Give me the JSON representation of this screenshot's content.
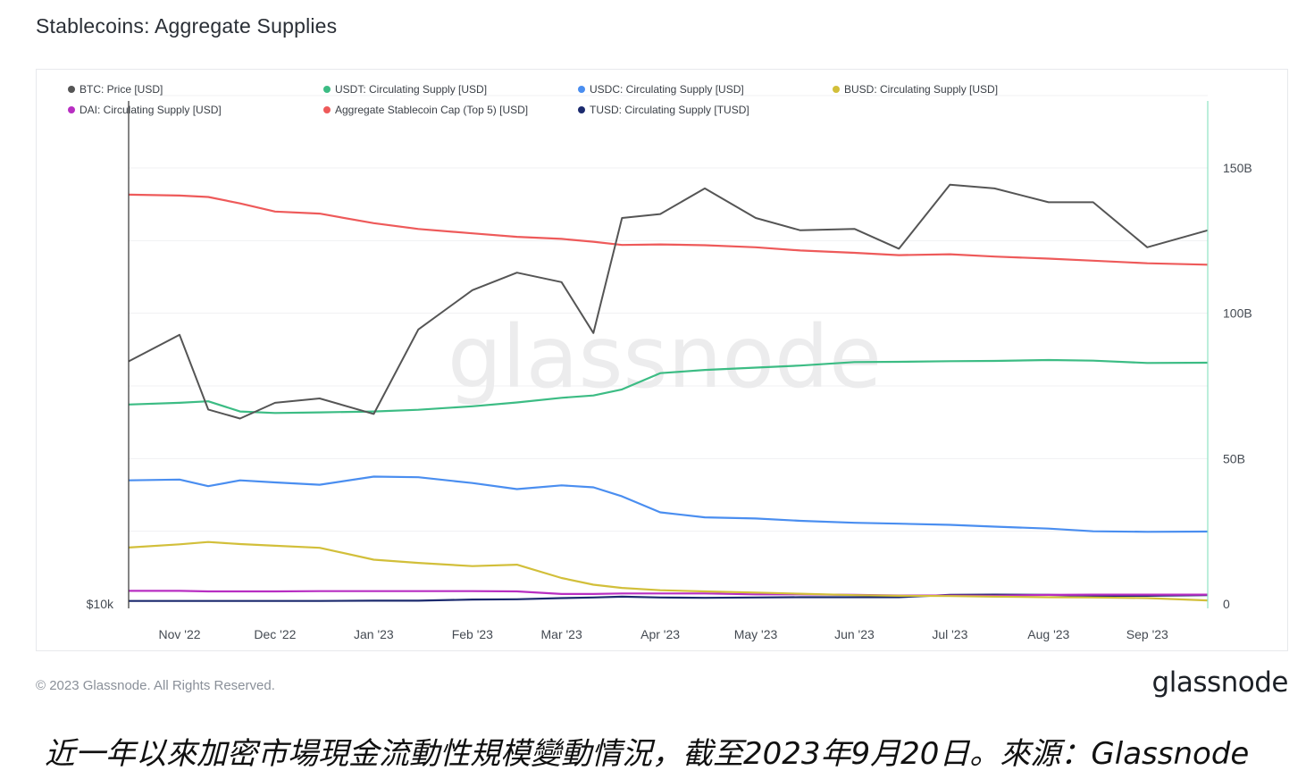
{
  "title": "Stablecoins: Aggregate Supplies",
  "copyright": "© 2023 Glassnode. All Rights Reserved.",
  "brand": "glassnode",
  "watermark": "glassnode",
  "caption": "近一年以來加密市場現金流動性規模變動情況，截至2023年9月20日。來源：Glassnode",
  "chart_data": {
    "type": "line",
    "title": "Stablecoins: Aggregate Supplies",
    "x_ticks": [
      "Nov '22",
      "Dec '22",
      "Jan '23",
      "Feb '23",
      "Mar '23",
      "Apr '23",
      "May '23",
      "Jun '23",
      "Jul '23",
      "Aug '23",
      "Sep '23"
    ],
    "x": [
      "2022-10-16",
      "2022-11-01",
      "2022-11-10",
      "2022-11-20",
      "2022-12-01",
      "2022-12-15",
      "2023-01-01",
      "2023-01-15",
      "2023-02-01",
      "2023-02-15",
      "2023-03-01",
      "2023-03-11",
      "2023-03-20",
      "2023-04-01",
      "2023-04-15",
      "2023-05-01",
      "2023-05-15",
      "2023-06-01",
      "2023-06-15",
      "2023-07-01",
      "2023-07-15",
      "2023-08-01",
      "2023-08-15",
      "2023-09-01",
      "2023-09-20"
    ],
    "right_axis": {
      "ticks": [
        "150B",
        "100B",
        "50B",
        "0"
      ],
      "ylim": [
        0,
        175
      ]
    },
    "left_axis": {
      "ticks": [
        "$10k"
      ],
      "scale": "log"
    },
    "legend": {
      "position": "top"
    },
    "series": [
      {
        "name": "BTC: Price [USD]",
        "color": "#555555",
        "axis": "left",
        "values": [
          19100,
          20500,
          16800,
          16400,
          17100,
          17300,
          16600,
          20800,
          23100,
          24200,
          23600,
          20600,
          28000,
          28300,
          30300,
          28000,
          27100,
          27200,
          25800,
          30600,
          30300,
          29200,
          29200,
          25900,
          27100
        ]
      },
      {
        "name": "USDT: Circulating Supply [USD]",
        "color": "#3cbc84",
        "axis": "right",
        "values": [
          68.6,
          69.2,
          69.7,
          66.2,
          65.7,
          65.9,
          66.2,
          66.8,
          68.0,
          69.3,
          70.9,
          71.7,
          73.8,
          79.4,
          80.5,
          81.3,
          82.0,
          83.2,
          83.3,
          83.5,
          83.6,
          83.9,
          83.7,
          82.9,
          83.0
        ]
      },
      {
        "name": "USDC: Circulating Supply [USD]",
        "color": "#4a8ef0",
        "axis": "right",
        "values": [
          42.5,
          42.8,
          40.5,
          42.5,
          41.8,
          41.0,
          43.8,
          43.6,
          41.6,
          39.5,
          40.8,
          40.1,
          37.0,
          31.5,
          29.8,
          29.4,
          28.6,
          27.9,
          27.6,
          27.2,
          26.6,
          25.9,
          25.0,
          24.8,
          24.9
        ]
      },
      {
        "name": "BUSD: Circulating Supply [USD]",
        "color": "#d2bf3a",
        "axis": "right",
        "values": [
          19.4,
          20.5,
          21.3,
          20.6,
          20.0,
          19.3,
          15.2,
          14.1,
          13.0,
          13.5,
          8.9,
          6.6,
          5.5,
          4.7,
          4.3,
          3.9,
          3.5,
          3.0,
          2.8,
          2.7,
          2.5,
          2.3,
          2.2,
          2.0,
          1.2
        ]
      },
      {
        "name": "DAI: Circulating Supply [USD]",
        "color": "#b82ec2",
        "axis": "right",
        "values": [
          4.5,
          4.5,
          4.3,
          4.3,
          4.3,
          4.4,
          4.4,
          4.4,
          4.4,
          4.3,
          3.4,
          3.4,
          3.6,
          3.6,
          3.6,
          3.3,
          3.3,
          3.1,
          2.9,
          2.9,
          2.8,
          3.1,
          3.2,
          3.2,
          3.2
        ]
      },
      {
        "name": "Aggregate Stablecoin Cap (Top 5) [USD]",
        "color": "#ee5a5a",
        "axis": "right",
        "values": [
          140.8,
          140.5,
          140.0,
          137.8,
          135.0,
          134.3,
          131.0,
          129.0,
          127.5,
          126.3,
          125.6,
          124.6,
          123.5,
          123.7,
          123.4,
          122.7,
          121.6,
          120.8,
          120.0,
          120.3,
          119.5,
          118.8,
          118.1,
          117.2,
          116.7
        ]
      },
      {
        "name": "TUSD: Circulating Supply [TUSD]",
        "color": "#1b2a6e",
        "axis": "right",
        "values": [
          1.0,
          1.0,
          1.0,
          1.0,
          1.0,
          1.0,
          1.1,
          1.1,
          1.5,
          1.6,
          2.0,
          2.2,
          2.5,
          2.2,
          2.1,
          2.2,
          2.3,
          2.3,
          2.3,
          3.1,
          3.2,
          3.1,
          2.8,
          2.8,
          3.0
        ]
      }
    ]
  }
}
